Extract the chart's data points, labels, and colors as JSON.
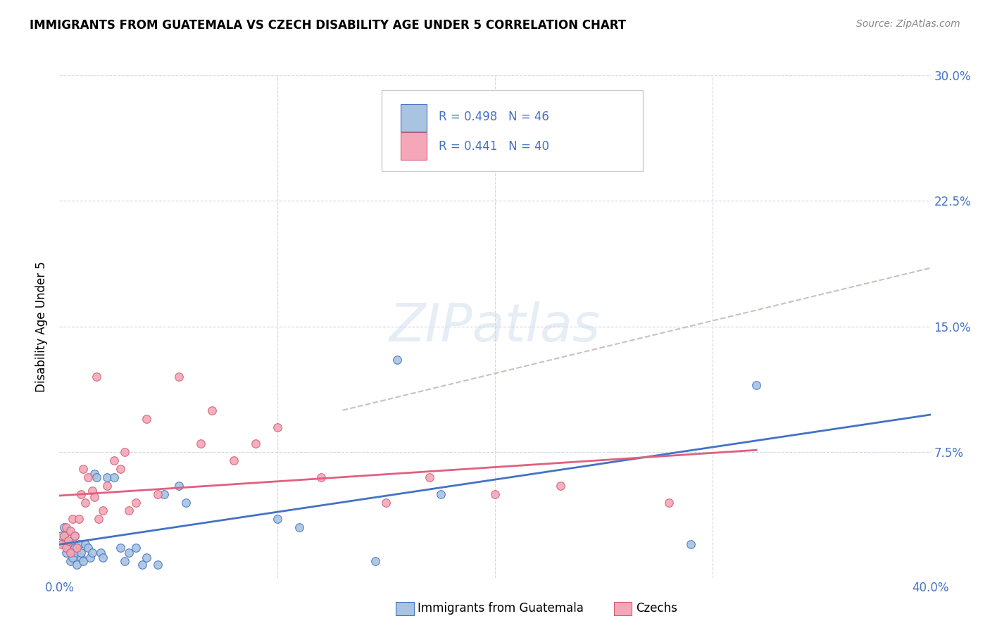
{
  "title": "IMMIGRANTS FROM GUATEMALA VS CZECH DISABILITY AGE UNDER 5 CORRELATION CHART",
  "source": "Source: ZipAtlas.com",
  "ylabel": "Disability Age Under 5",
  "xlim": [
    0.0,
    0.4
  ],
  "ylim": [
    0.0,
    0.3
  ],
  "color_blue": "#a8c4e0",
  "color_pink": "#f4a7b9",
  "line_color_blue": "#4472c4",
  "line_color_pink": "#e06080",
  "guatemala_x": [
    0.001,
    0.002,
    0.002,
    0.003,
    0.003,
    0.004,
    0.004,
    0.005,
    0.005,
    0.006,
    0.006,
    0.007,
    0.007,
    0.008,
    0.008,
    0.009,
    0.01,
    0.01,
    0.011,
    0.012,
    0.013,
    0.014,
    0.015,
    0.016,
    0.017,
    0.019,
    0.02,
    0.022,
    0.025,
    0.028,
    0.03,
    0.032,
    0.035,
    0.038,
    0.04,
    0.045,
    0.048,
    0.055,
    0.058,
    0.1,
    0.11,
    0.145,
    0.155,
    0.175,
    0.29,
    0.32
  ],
  "guatemala_y": [
    0.025,
    0.02,
    0.03,
    0.015,
    0.022,
    0.018,
    0.028,
    0.01,
    0.02,
    0.015,
    0.012,
    0.018,
    0.025,
    0.008,
    0.015,
    0.02,
    0.012,
    0.015,
    0.01,
    0.02,
    0.018,
    0.012,
    0.015,
    0.062,
    0.06,
    0.015,
    0.012,
    0.06,
    0.06,
    0.018,
    0.01,
    0.015,
    0.018,
    0.008,
    0.012,
    0.008,
    0.05,
    0.055,
    0.045,
    0.035,
    0.03,
    0.01,
    0.13,
    0.05,
    0.02,
    0.115
  ],
  "czech_x": [
    0.001,
    0.002,
    0.003,
    0.003,
    0.004,
    0.005,
    0.005,
    0.006,
    0.007,
    0.008,
    0.009,
    0.01,
    0.011,
    0.012,
    0.013,
    0.015,
    0.016,
    0.017,
    0.018,
    0.02,
    0.022,
    0.025,
    0.028,
    0.03,
    0.032,
    0.035,
    0.04,
    0.045,
    0.055,
    0.065,
    0.07,
    0.08,
    0.09,
    0.1,
    0.12,
    0.15,
    0.17,
    0.2,
    0.23,
    0.28
  ],
  "czech_y": [
    0.02,
    0.025,
    0.018,
    0.03,
    0.022,
    0.015,
    0.028,
    0.035,
    0.025,
    0.018,
    0.035,
    0.05,
    0.065,
    0.045,
    0.06,
    0.052,
    0.048,
    0.12,
    0.035,
    0.04,
    0.055,
    0.07,
    0.065,
    0.075,
    0.04,
    0.045,
    0.095,
    0.05,
    0.12,
    0.08,
    0.1,
    0.07,
    0.08,
    0.09,
    0.06,
    0.045,
    0.06,
    0.05,
    0.055,
    0.045
  ]
}
